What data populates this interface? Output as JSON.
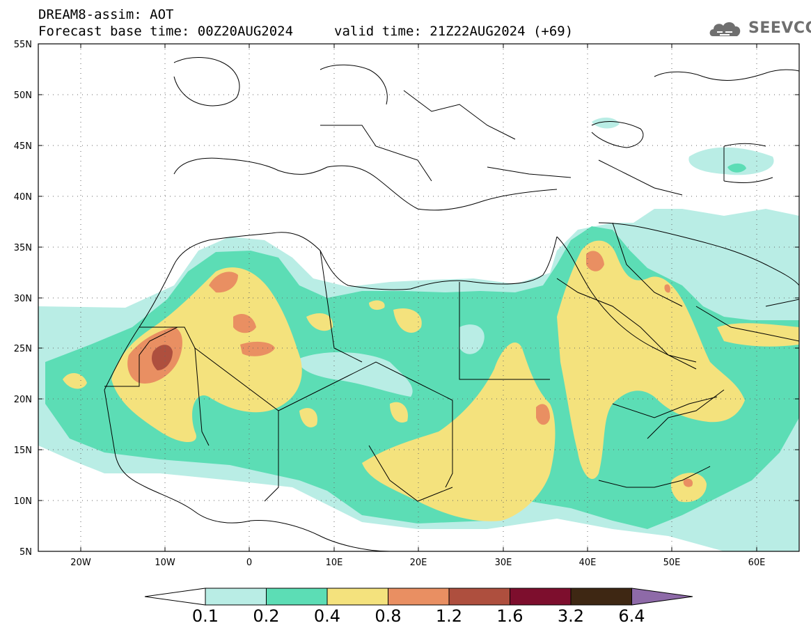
{
  "header": {
    "line1": "DREAM8-assim: AOT",
    "line2": "Forecast base time: 00Z20AUG2024",
    "line3": "valid time: 21Z22AUG2024 (+69)",
    "logo_text": "SEEVCCC"
  },
  "map": {
    "lon_range": [
      -25,
      65
    ],
    "lat_range": [
      5,
      55
    ],
    "lon_ticks": [
      -20,
      -10,
      0,
      10,
      20,
      30,
      40,
      50,
      60
    ],
    "lat_ticks": [
      5,
      10,
      15,
      20,
      25,
      30,
      35,
      40,
      45,
      50,
      55
    ],
    "lon_labels": [
      "20W",
      "10W",
      "0",
      "10E",
      "20E",
      "30E",
      "40E",
      "50E",
      "60E"
    ],
    "lat_labels": [
      "5N",
      "10N",
      "15N",
      "20N",
      "25N",
      "30N",
      "35N",
      "40N",
      "45N",
      "50N",
      "55N"
    ],
    "grid": "dotted"
  },
  "colorbar": {
    "labels": [
      "0.1",
      "0.2",
      "0.4",
      "0.8",
      "1.2",
      "1.6",
      "3.2",
      "6.4"
    ],
    "colors": [
      "#ffffff",
      "#b9ede5",
      "#5cddb5",
      "#f4e27d",
      "#e98f62",
      "#ae4f3e",
      "#7d0e2d",
      "#3e2713",
      "#8e6aa8"
    ]
  }
}
